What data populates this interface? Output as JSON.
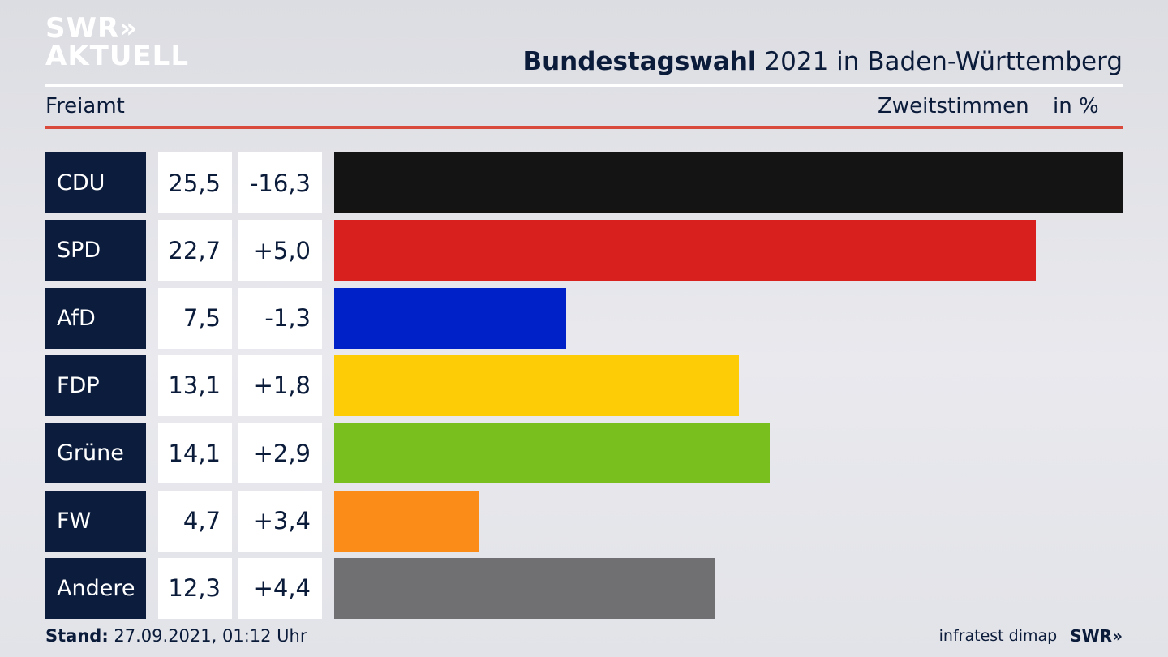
{
  "logo": {
    "line1": "SWR»",
    "line2": "AKTUELL"
  },
  "header": {
    "title_bold": "Bundestagswahl",
    "title_rest": " 2021 in Baden-Württemberg",
    "region": "Freiamt",
    "metric": "Zweitstimmen",
    "unit": "in %"
  },
  "chart_data": {
    "type": "bar",
    "title": "Bundestagswahl 2021 in Baden-Württemberg",
    "categories": [
      "CDU",
      "SPD",
      "AfD",
      "FDP",
      "Grüne",
      "FW",
      "Andere"
    ],
    "values": [
      25.5,
      22.7,
      7.5,
      13.1,
      14.1,
      4.7,
      12.3
    ],
    "values_text": [
      "25,5",
      "22,7",
      "7,5",
      "13,1",
      "14,1",
      "4,7",
      "12,3"
    ],
    "changes_text": [
      "-16,3",
      "+5,0",
      "-1,3",
      "+1,8",
      "+2,9",
      "+3,4",
      "+4,4"
    ],
    "colors": [
      "#141414",
      "#d8201f",
      "#0021c8",
      "#fdcc07",
      "#79bf1e",
      "#fb8c17",
      "#707072"
    ],
    "xlim": [
      0,
      25.5
    ],
    "orientation": "horizontal"
  },
  "footer": {
    "stand_label": "Stand:",
    "stand_value": " 27.09.2021, 01:12 Uhr",
    "source": "infratest dimap",
    "brand": "SWR»"
  }
}
